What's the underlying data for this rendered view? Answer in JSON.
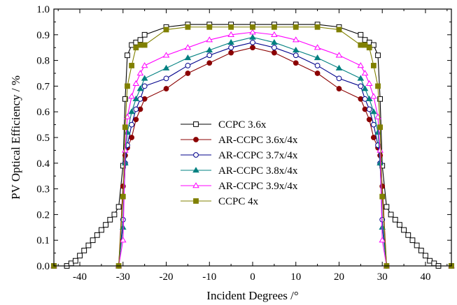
{
  "chart_data": {
    "type": "line",
    "xlabel": "Incident Degrees /°",
    "ylabel": "PV Optical Efficiency / %",
    "xlim": [
      -46,
      46
    ],
    "ylim": [
      0,
      1.0
    ],
    "x_ticks": [
      -40,
      -30,
      -20,
      -10,
      0,
      10,
      20,
      30,
      40
    ],
    "x_tick_labels": [
      "-40",
      "-30",
      "-20",
      "-10",
      "0",
      "10",
      "20",
      "30",
      "40"
    ],
    "y_ticks": [
      0,
      0.1,
      0.2,
      0.3,
      0.4,
      0.5,
      0.6,
      0.7,
      0.8,
      0.9,
      1.0
    ],
    "y_tick_labels": [
      "0.0",
      "0.1",
      "0.2",
      "0.3",
      "0.4",
      "0.5",
      "0.6",
      "0.7",
      "0.8",
      "0.9",
      "1.0"
    ],
    "grid": false,
    "legend_position": "center",
    "series": [
      {
        "name": "CCPC 3.6x",
        "color": "#000000",
        "marker": "open-square",
        "points": [
          [
            -46,
            0
          ],
          [
            -43,
            0
          ],
          [
            -42,
            0.01
          ],
          [
            -41,
            0.02
          ],
          [
            -40,
            0.04
          ],
          [
            -39,
            0.06
          ],
          [
            -38,
            0.08
          ],
          [
            -37,
            0.1
          ],
          [
            -36,
            0.12
          ],
          [
            -35,
            0.14
          ],
          [
            -34,
            0.16
          ],
          [
            -33,
            0.18
          ],
          [
            -32,
            0.2
          ],
          [
            -31,
            0.23
          ],
          [
            -30,
            0.39
          ],
          [
            -29.5,
            0.65
          ],
          [
            -29,
            0.82
          ],
          [
            -28,
            0.86
          ],
          [
            -27,
            0.87
          ],
          [
            -26,
            0.88
          ],
          [
            -25,
            0.9
          ],
          [
            -20,
            0.93
          ],
          [
            -15,
            0.94
          ],
          [
            -10,
            0.94
          ],
          [
            -5,
            0.94
          ],
          [
            0,
            0.94
          ],
          [
            5,
            0.94
          ],
          [
            10,
            0.94
          ],
          [
            15,
            0.94
          ],
          [
            20,
            0.93
          ],
          [
            25,
            0.9
          ],
          [
            26,
            0.88
          ],
          [
            27,
            0.87
          ],
          [
            28,
            0.86
          ],
          [
            29,
            0.82
          ],
          [
            29.5,
            0.65
          ],
          [
            30,
            0.39
          ],
          [
            31,
            0.23
          ],
          [
            32,
            0.2
          ],
          [
            33,
            0.18
          ],
          [
            34,
            0.16
          ],
          [
            35,
            0.14
          ],
          [
            36,
            0.12
          ],
          [
            37,
            0.1
          ],
          [
            38,
            0.08
          ],
          [
            39,
            0.06
          ],
          [
            40,
            0.04
          ],
          [
            41,
            0.02
          ],
          [
            42,
            0.01
          ],
          [
            43,
            0
          ],
          [
            46,
            0
          ]
        ]
      },
      {
        "name": "AR-CCPC 3.6x/4x",
        "color": "#8b0000",
        "marker": "filled-circle",
        "points": [
          [
            -46,
            0
          ],
          [
            -31,
            0
          ],
          [
            -30,
            0.31
          ],
          [
            -29.5,
            0.43
          ],
          [
            -29,
            0.46
          ],
          [
            -28,
            0.5
          ],
          [
            -27,
            0.57
          ],
          [
            -26,
            0.61
          ],
          [
            -25,
            0.65
          ],
          [
            -20,
            0.69
          ],
          [
            -15,
            0.75
          ],
          [
            -10,
            0.79
          ],
          [
            -5,
            0.83
          ],
          [
            0,
            0.85
          ],
          [
            5,
            0.83
          ],
          [
            10,
            0.79
          ],
          [
            15,
            0.75
          ],
          [
            20,
            0.69
          ],
          [
            25,
            0.65
          ],
          [
            26,
            0.61
          ],
          [
            27,
            0.57
          ],
          [
            28,
            0.5
          ],
          [
            29,
            0.46
          ],
          [
            29.5,
            0.43
          ],
          [
            30,
            0.31
          ],
          [
            31,
            0
          ],
          [
            46,
            0
          ]
        ]
      },
      {
        "name": "AR-CCPC 3.7x/4x",
        "color": "#00008b",
        "marker": "open-circle",
        "points": [
          [
            -46,
            0
          ],
          [
            -31,
            0
          ],
          [
            -30,
            0.18
          ],
          [
            -29.5,
            0.4
          ],
          [
            -29,
            0.47
          ],
          [
            -28,
            0.55
          ],
          [
            -27,
            0.61
          ],
          [
            -26,
            0.65
          ],
          [
            -25,
            0.7
          ],
          [
            -20,
            0.73
          ],
          [
            -15,
            0.78
          ],
          [
            -10,
            0.82
          ],
          [
            -5,
            0.85
          ],
          [
            0,
            0.87
          ],
          [
            5,
            0.85
          ],
          [
            10,
            0.82
          ],
          [
            15,
            0.78
          ],
          [
            20,
            0.73
          ],
          [
            25,
            0.7
          ],
          [
            26,
            0.65
          ],
          [
            27,
            0.61
          ],
          [
            28,
            0.55
          ],
          [
            29,
            0.47
          ],
          [
            29.5,
            0.4
          ],
          [
            30,
            0.18
          ],
          [
            31,
            0
          ],
          [
            46,
            0
          ]
        ]
      },
      {
        "name": "AR-CCPC 3.8x/4x",
        "color": "#008080",
        "marker": "filled-triangle",
        "points": [
          [
            -46,
            0
          ],
          [
            -31,
            0
          ],
          [
            -30,
            0.15
          ],
          [
            -29.5,
            0.4
          ],
          [
            -29,
            0.52
          ],
          [
            -28,
            0.6
          ],
          [
            -27,
            0.65
          ],
          [
            -26,
            0.69
          ],
          [
            -25,
            0.73
          ],
          [
            -20,
            0.77
          ],
          [
            -15,
            0.81
          ],
          [
            -10,
            0.84
          ],
          [
            -5,
            0.87
          ],
          [
            0,
            0.89
          ],
          [
            5,
            0.87
          ],
          [
            10,
            0.84
          ],
          [
            15,
            0.81
          ],
          [
            20,
            0.77
          ],
          [
            25,
            0.73
          ],
          [
            26,
            0.69
          ],
          [
            27,
            0.65
          ],
          [
            28,
            0.6
          ],
          [
            29,
            0.52
          ],
          [
            29.5,
            0.4
          ],
          [
            30,
            0.15
          ],
          [
            31,
            0
          ],
          [
            46,
            0
          ]
        ]
      },
      {
        "name": "AR-CCPC 3.9x/4x",
        "color": "#ff00ff",
        "marker": "open-triangle",
        "points": [
          [
            -46,
            0
          ],
          [
            -31,
            0
          ],
          [
            -30,
            0.1
          ],
          [
            -29.5,
            0.45
          ],
          [
            -29,
            0.58
          ],
          [
            -28,
            0.66
          ],
          [
            -27,
            0.71
          ],
          [
            -26,
            0.75
          ],
          [
            -25,
            0.78
          ],
          [
            -20,
            0.82
          ],
          [
            -15,
            0.85
          ],
          [
            -10,
            0.88
          ],
          [
            -5,
            0.9
          ],
          [
            0,
            0.91
          ],
          [
            5,
            0.9
          ],
          [
            10,
            0.88
          ],
          [
            15,
            0.85
          ],
          [
            20,
            0.82
          ],
          [
            25,
            0.78
          ],
          [
            26,
            0.75
          ],
          [
            27,
            0.71
          ],
          [
            28,
            0.66
          ],
          [
            29,
            0.58
          ],
          [
            29.5,
            0.45
          ],
          [
            30,
            0.1
          ],
          [
            31,
            0
          ],
          [
            46,
            0
          ]
        ]
      },
      {
        "name": "CCPC 4x",
        "color": "#808000",
        "marker": "filled-square",
        "points": [
          [
            -46,
            0
          ],
          [
            -31,
            0
          ],
          [
            -30,
            0.27
          ],
          [
            -29.5,
            0.54
          ],
          [
            -29,
            0.7
          ],
          [
            -28,
            0.78
          ],
          [
            -27,
            0.85
          ],
          [
            -26,
            0.86
          ],
          [
            -25,
            0.86
          ],
          [
            -20,
            0.92
          ],
          [
            -15,
            0.93
          ],
          [
            -10,
            0.93
          ],
          [
            -5,
            0.93
          ],
          [
            0,
            0.93
          ],
          [
            5,
            0.93
          ],
          [
            10,
            0.93
          ],
          [
            15,
            0.93
          ],
          [
            20,
            0.92
          ],
          [
            25,
            0.86
          ],
          [
            26,
            0.86
          ],
          [
            27,
            0.85
          ],
          [
            28,
            0.78
          ],
          [
            29,
            0.7
          ],
          [
            29.5,
            0.54
          ],
          [
            30,
            0.27
          ],
          [
            31,
            0
          ],
          [
            46,
            0
          ]
        ]
      }
    ]
  }
}
